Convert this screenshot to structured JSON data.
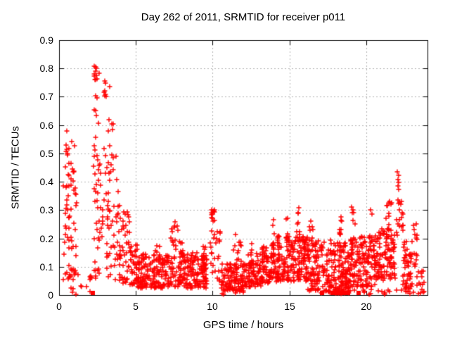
{
  "chart_data": {
    "type": "scatter",
    "title": "Day 262 of 2011, SRMTID for receiver p011",
    "xlabel": "GPS time / hours",
    "ylabel": "SRMTID / TECUs",
    "xlim": [
      0,
      24
    ],
    "ylim": [
      0,
      0.9
    ],
    "xticks": [
      0,
      5,
      10,
      15,
      20
    ],
    "yticks": [
      0,
      0.1,
      0.2,
      0.3,
      0.4,
      0.5,
      0.6,
      0.7,
      0.8,
      0.9
    ],
    "grid": "dotted",
    "legend": "none",
    "marker": "plus",
    "marker_color": "#ff0000",
    "grid_color": "#b3b3b3",
    "border_color": "#000000",
    "background": "#ffffff",
    "bands_format": [
      "x_start",
      "x_end",
      "y_min",
      "y_max",
      "count",
      "skew"
    ],
    "bands": [
      [
        0.28,
        1.15,
        0.0,
        0.585,
        75,
        1.15
      ],
      [
        1.15,
        2.15,
        0.01,
        0.1,
        10,
        1.2
      ],
      [
        2.25,
        2.6,
        0.04,
        0.81,
        42,
        1.0
      ],
      [
        2.6,
        2.92,
        0.05,
        0.48,
        14,
        1.2
      ],
      [
        2.92,
        3.3,
        0.05,
        0.77,
        30,
        1.05
      ],
      [
        3.3,
        3.95,
        0.05,
        0.62,
        38,
        1.35
      ],
      [
        3.95,
        4.6,
        0.04,
        0.3,
        42,
        1.5
      ],
      [
        4.6,
        5.1,
        0.03,
        0.18,
        40,
        1.4
      ],
      [
        5.1,
        7.2,
        0.025,
        0.145,
        160,
        1.35
      ],
      [
        6.2,
        6.55,
        0.1,
        0.185,
        7,
        1.0
      ],
      [
        7.2,
        7.75,
        0.03,
        0.26,
        34,
        1.8
      ],
      [
        7.75,
        9.65,
        0.025,
        0.15,
        160,
        1.35
      ],
      [
        7.9,
        8.15,
        0.12,
        0.19,
        6,
        1.0
      ],
      [
        9.3,
        9.55,
        0.1,
        0.175,
        6,
        1.0
      ],
      [
        9.85,
        10.18,
        0.08,
        0.305,
        20,
        1.0
      ],
      [
        10.18,
        10.5,
        0.05,
        0.23,
        12,
        1.2
      ],
      [
        10.5,
        12.1,
        0.015,
        0.11,
        100,
        1.25
      ],
      [
        11.35,
        11.95,
        0.08,
        0.21,
        12,
        1.0
      ],
      [
        12.1,
        13.2,
        0.03,
        0.15,
        80,
        1.3
      ],
      [
        12.45,
        12.65,
        0.1,
        0.18,
        6,
        1.0
      ],
      [
        13.2,
        14.2,
        0.04,
        0.18,
        85,
        1.3
      ],
      [
        13.85,
        14.05,
        0.12,
        0.26,
        7,
        1.0
      ],
      [
        14.2,
        16.2,
        0.05,
        0.21,
        175,
        1.25
      ],
      [
        14.8,
        15.0,
        0.15,
        0.275,
        6,
        1.0
      ],
      [
        15.45,
        15.75,
        0.15,
        0.305,
        8,
        1.0
      ],
      [
        15.95,
        16.15,
        0.12,
        0.25,
        6,
        1.0
      ],
      [
        16.2,
        17.5,
        0.015,
        0.19,
        100,
        1.35
      ],
      [
        16.3,
        17.0,
        0.16,
        0.26,
        10,
        1.0
      ],
      [
        17.5,
        19.0,
        0.008,
        0.19,
        155,
        1.45
      ],
      [
        18.25,
        18.55,
        0.15,
        0.27,
        9,
        1.0
      ],
      [
        19.0,
        20.6,
        0.03,
        0.21,
        140,
        1.25
      ],
      [
        18.95,
        19.3,
        0.18,
        0.315,
        10,
        1.0
      ],
      [
        20.6,
        21.9,
        0.05,
        0.235,
        120,
        1.15
      ],
      [
        21.3,
        21.7,
        0.22,
        0.33,
        8,
        1.0
      ],
      [
        21.95,
        22.4,
        0.2,
        0.335,
        16,
        1.0
      ],
      [
        22.4,
        23.0,
        0.02,
        0.19,
        45,
        1.15
      ],
      [
        22.95,
        23.35,
        0.1,
        0.25,
        14,
        1.0
      ],
      [
        23.3,
        23.8,
        0.005,
        0.09,
        16,
        1.2
      ],
      [
        16.5,
        23.3,
        0.002,
        0.02,
        30,
        1.0
      ],
      [
        10.5,
        12.1,
        0.002,
        0.03,
        15,
        1.0
      ]
    ],
    "points": [
      [
        0.5,
        0.58
      ],
      [
        0.47,
        0.53
      ],
      [
        0.52,
        0.515
      ],
      [
        0.55,
        0.5
      ],
      [
        2.38,
        0.805
      ],
      [
        2.43,
        0.8
      ],
      [
        2.36,
        0.79
      ],
      [
        2.41,
        0.775
      ],
      [
        2.39,
        0.762
      ],
      [
        2.97,
        0.757
      ],
      [
        3.02,
        0.748
      ],
      [
        2.99,
        0.722
      ],
      [
        3.05,
        0.7
      ],
      [
        3.45,
        0.605
      ],
      [
        3.5,
        0.585
      ],
      [
        6.35,
        0.175
      ],
      [
        7.85,
        0.19
      ],
      [
        9.4,
        0.172
      ],
      [
        9.95,
        0.302
      ],
      [
        10.0,
        0.287
      ],
      [
        9.98,
        0.272
      ],
      [
        10.05,
        0.26
      ],
      [
        10.3,
        0.225
      ],
      [
        11.5,
        0.215
      ],
      [
        12.55,
        0.182
      ],
      [
        13.95,
        0.265
      ],
      [
        14.9,
        0.272
      ],
      [
        15.55,
        0.29
      ],
      [
        15.6,
        0.308
      ],
      [
        16.4,
        0.262
      ],
      [
        17.7,
        0.195
      ],
      [
        18.35,
        0.275
      ],
      [
        19.15,
        0.302
      ],
      [
        19.2,
        0.292
      ],
      [
        20.3,
        0.3
      ],
      [
        20.36,
        0.286
      ],
      [
        21.4,
        0.315
      ],
      [
        21.5,
        0.325
      ],
      [
        22.05,
        0.436
      ],
      [
        22.1,
        0.423
      ],
      [
        22.07,
        0.408
      ],
      [
        22.12,
        0.398
      ],
      [
        22.06,
        0.385
      ],
      [
        22.11,
        0.372
      ],
      [
        22.09,
        0.335
      ],
      [
        22.14,
        0.322
      ],
      [
        22.16,
        0.302
      ],
      [
        22.48,
        0.132
      ],
      [
        22.5,
        0.178
      ],
      [
        22.52,
        0.156
      ],
      [
        23.1,
        0.245
      ],
      [
        23.15,
        0.23
      ]
    ],
    "squares": {
      "x": [
        2.2,
        17.15,
        17.82,
        17.96,
        18.1,
        18.22,
        18.34,
        18.47,
        18.66,
        18.82,
        19.5
      ],
      "y": 0.008
    }
  }
}
